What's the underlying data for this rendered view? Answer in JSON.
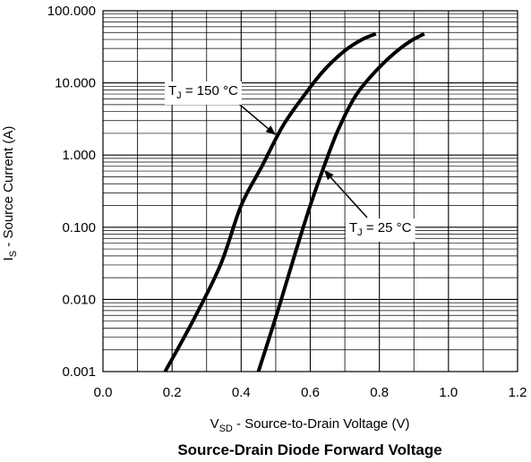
{
  "chart_data": {
    "type": "line",
    "title": "Source-Drain Diode Forward Voltage",
    "xlabel": {
      "main": "V",
      "sub": "SD",
      "rest": " - Source-to-Drain Voltage (V)"
    },
    "ylabel": {
      "main": "I",
      "sub": "S",
      "rest": " - Source Current (A)"
    },
    "xlim": [
      0.0,
      1.2
    ],
    "ylim": [
      0.001,
      100
    ],
    "yscale": "log",
    "grid": true,
    "x_ticks": [
      0.0,
      0.2,
      0.4,
      0.6,
      0.8,
      1.0,
      1.2
    ],
    "x_tick_labels": [
      "0.0",
      "0.2",
      "0.4",
      "0.6",
      "0.8",
      "1.0",
      "1.2"
    ],
    "y_ticks": [
      0.001,
      0.01,
      0.1,
      1,
      10,
      100
    ],
    "y_tick_labels": [
      "0.001",
      "0.010",
      "0.100",
      "1.000",
      "10.000",
      "100.000"
    ],
    "series": [
      {
        "name": "TJ = 150 °C",
        "label": {
          "main": "T",
          "sub": "J",
          "rest": " = 150 °C"
        },
        "x": [
          0.18,
          0.26,
          0.34,
          0.4,
          0.46,
          0.52,
          0.58,
          0.64,
          0.7,
          0.75,
          0.79
        ],
        "y": [
          0.001,
          0.005,
          0.03,
          0.2,
          0.7,
          2.5,
          6.5,
          15,
          28,
          40,
          48
        ]
      },
      {
        "name": "TJ = 25 °C",
        "label": {
          "main": "T",
          "sub": "J",
          "rest": " = 25 °C"
        },
        "x": [
          0.45,
          0.51,
          0.56,
          0.6,
          0.64,
          0.68,
          0.73,
          0.78,
          0.84,
          0.89,
          0.93
        ],
        "y": [
          0.001,
          0.008,
          0.05,
          0.2,
          0.7,
          2.2,
          6.5,
          13,
          25,
          38,
          48
        ]
      }
    ],
    "line_color": "#000000"
  }
}
